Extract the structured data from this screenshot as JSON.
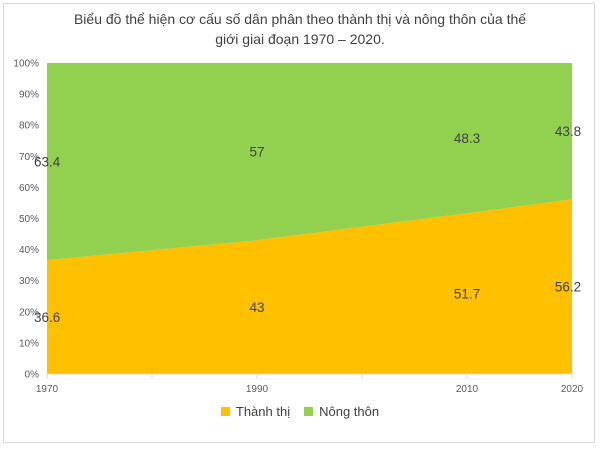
{
  "chart_data": {
    "type": "area",
    "stacked": "percent",
    "title_lines": [
      "Biểu đồ thể hiện cơ cấu số dân phân theo thành thị và nông thôn của thế",
      "giới giai đoạn 1970 – 2020."
    ],
    "x": [
      1970,
      1990,
      2010,
      2020
    ],
    "x_tick_labels": [
      "1970",
      "1990",
      "2010",
      "2020"
    ],
    "y_tick_labels": [
      "0%",
      "10%",
      "20%",
      "30%",
      "40%",
      "50%",
      "60%",
      "70%",
      "80%",
      "90%",
      "100%"
    ],
    "ylim": [
      0,
      100
    ],
    "grid": false,
    "legend_position": "bottom",
    "series": [
      {
        "name": "Thành thị",
        "color": "#ffc000",
        "values": [
          36.6,
          43,
          51.7,
          56.2
        ],
        "labels": [
          "36.6",
          "43",
          "51.7",
          "56.2"
        ]
      },
      {
        "name": "Nông thôn",
        "color": "#92d050",
        "values": [
          63.4,
          57,
          48.3,
          43.8
        ],
        "labels": [
          "63.4",
          "57",
          "48.3",
          "43.8"
        ]
      }
    ]
  }
}
